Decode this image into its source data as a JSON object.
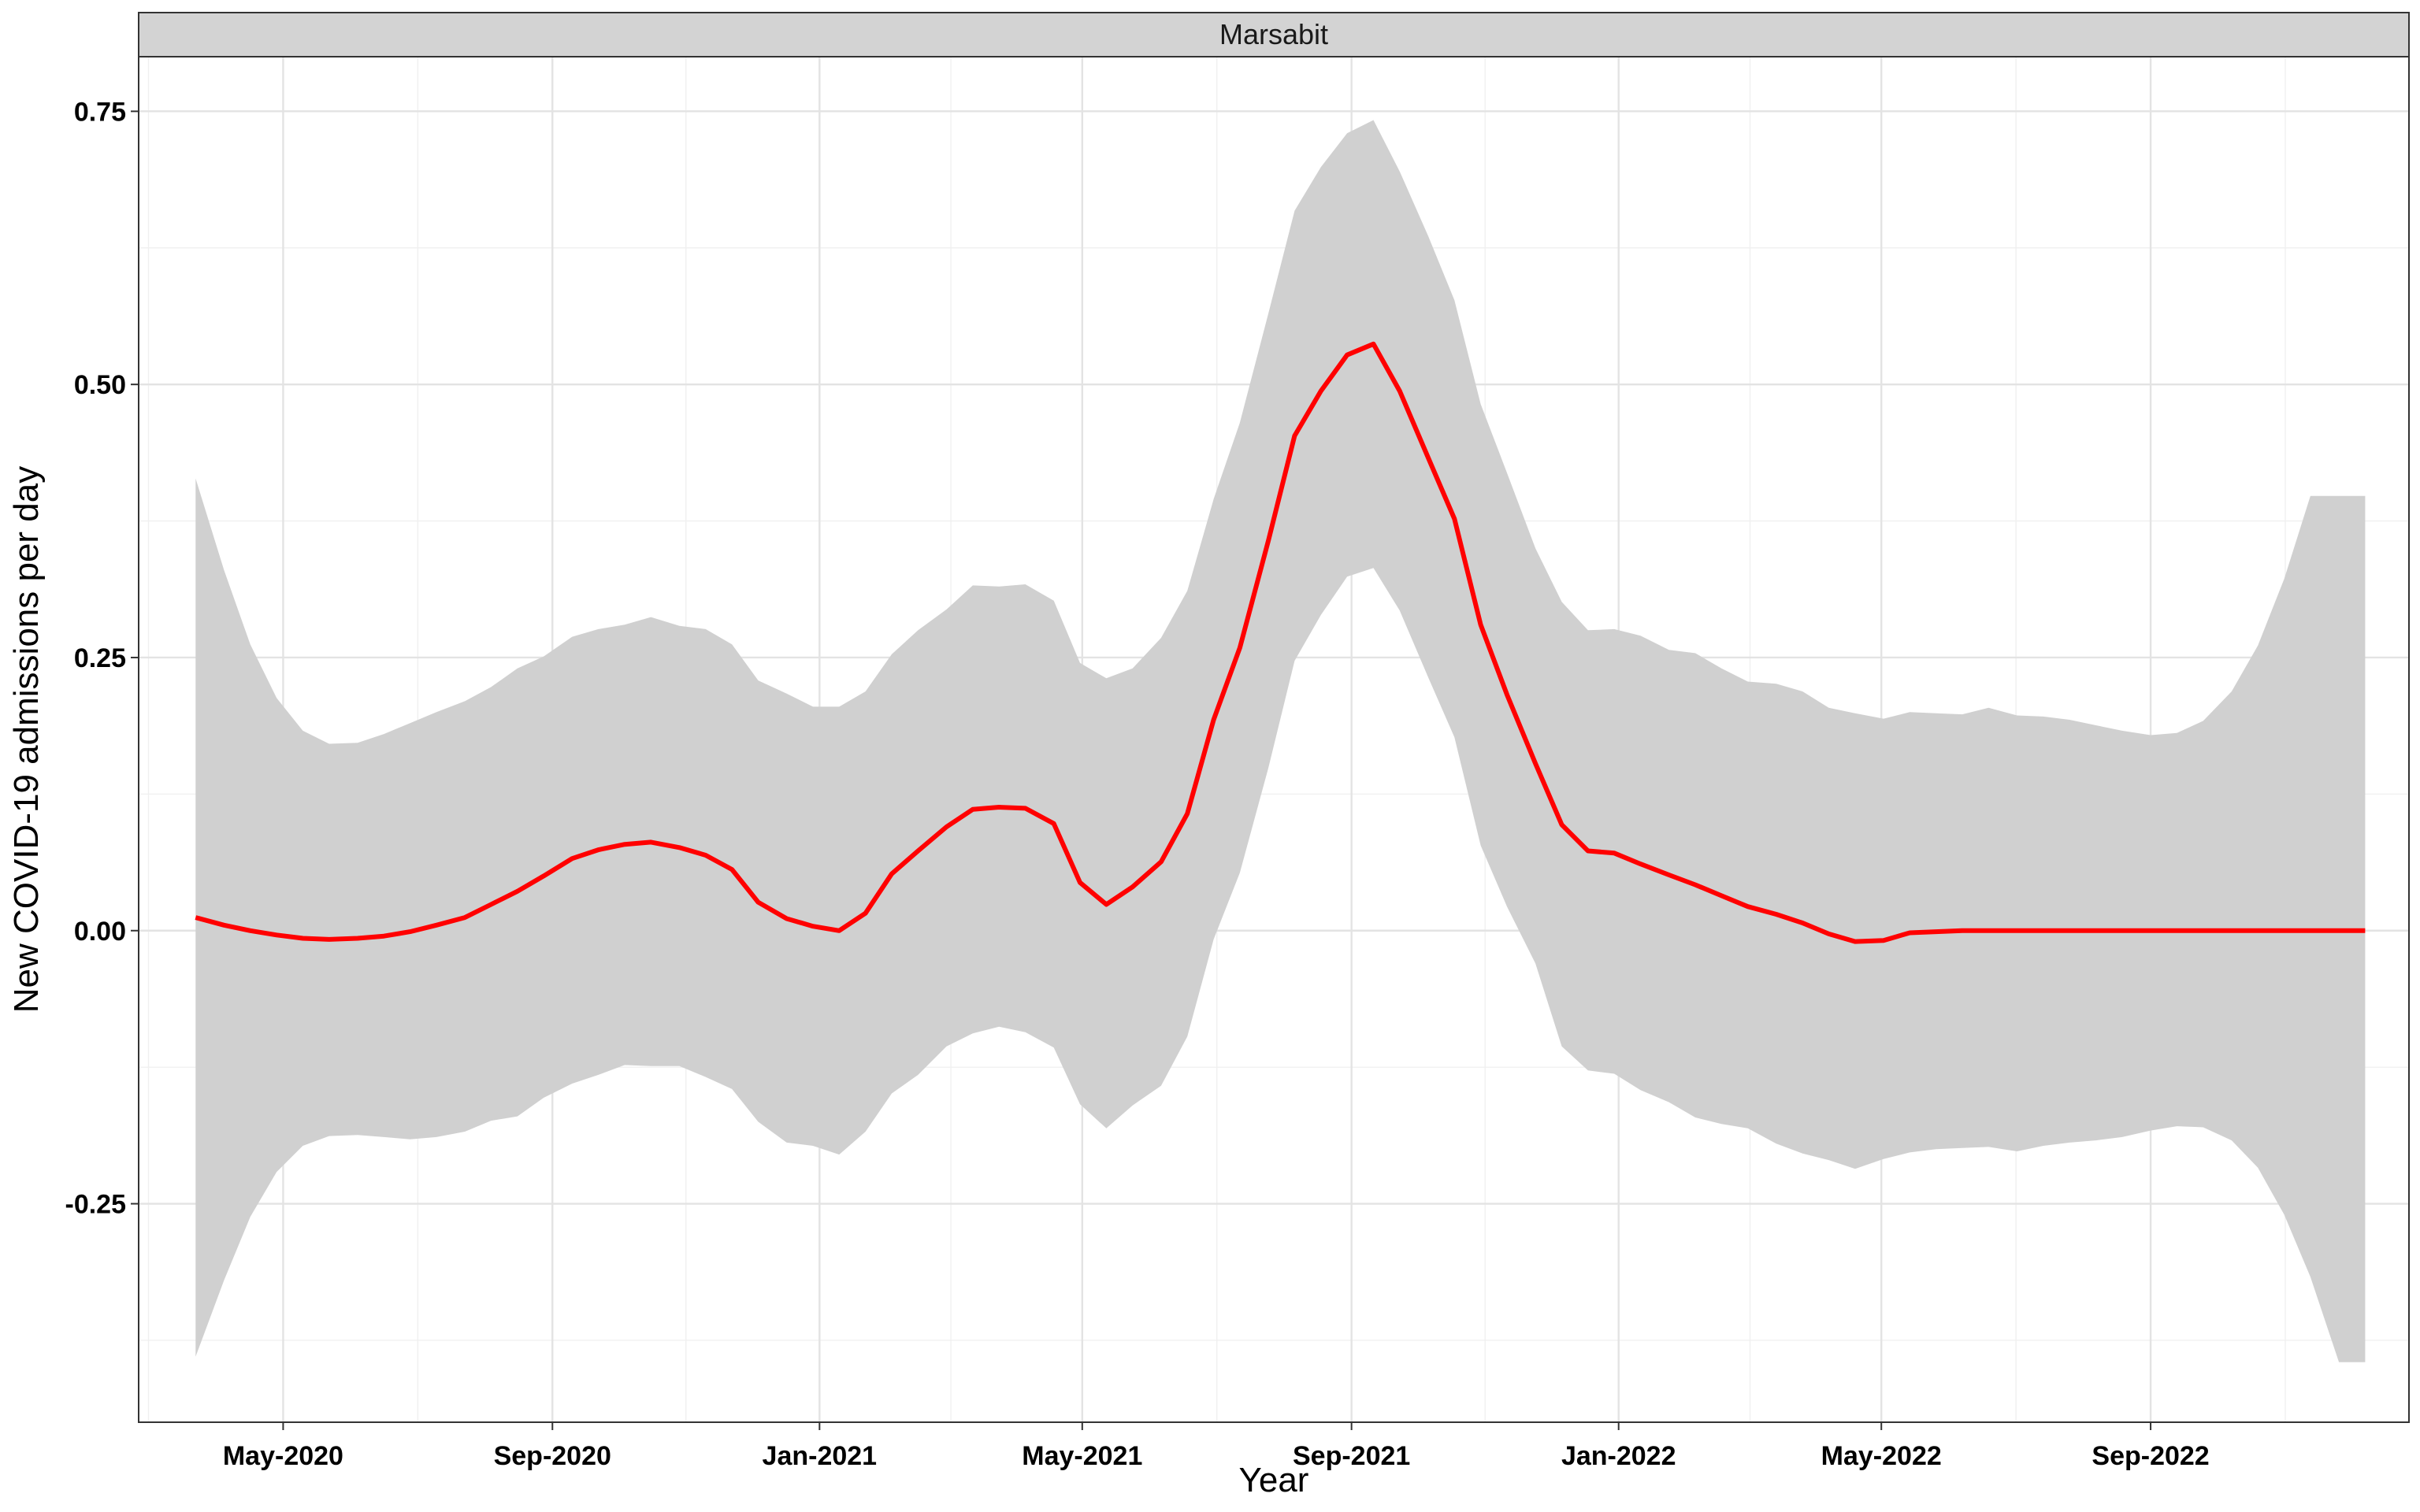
{
  "chart_data": {
    "type": "area",
    "facet_label": "Marsabit",
    "xlabel": "Year",
    "ylabel": "New COVID-19 admissions per day",
    "x_ticks": [
      "2020-05-01",
      "2020-09-01",
      "2021-01-01",
      "2021-05-01",
      "2021-09-01",
      "2022-01-01",
      "2022-05-01",
      "2022-09-01"
    ],
    "x_tick_labels": [
      "May-2020",
      "Sep-2020",
      "Jan-2021",
      "May-2021",
      "Sep-2021",
      "Jan-2022",
      "May-2022",
      "Sep-2022"
    ],
    "y_ticks": [
      -0.25,
      0,
      0.25,
      0.5,
      0.75
    ],
    "y_tick_labels": [
      "-0.25",
      "0.00",
      "0.25",
      "0.50",
      "0.75"
    ],
    "xlim": [
      "2020-02-25",
      "2022-12-28"
    ],
    "ylim": [
      -0.45,
      0.8
    ],
    "grid": true,
    "colors": {
      "line": "#ff0000",
      "ribbon": "#d0d0d0",
      "strip": "#d3d3d3"
    },
    "x": [
      "2020-03-22",
      "2020-04-04",
      "2020-04-16",
      "2020-04-28",
      "2020-05-10",
      "2020-05-22",
      "2020-06-04",
      "2020-06-16",
      "2020-06-28",
      "2020-07-10",
      "2020-07-23",
      "2020-08-04",
      "2020-08-16",
      "2020-08-28",
      "2020-09-10",
      "2020-09-22",
      "2020-10-04",
      "2020-10-16",
      "2020-10-29",
      "2020-11-10",
      "2020-11-22",
      "2020-12-04",
      "2020-12-17",
      "2020-12-29",
      "2021-01-10",
      "2021-01-22",
      "2021-02-03",
      "2021-02-15",
      "2021-02-28",
      "2021-03-12",
      "2021-03-24",
      "2021-04-05",
      "2021-04-18",
      "2021-04-30",
      "2021-05-12",
      "2021-05-24",
      "2021-06-06",
      "2021-06-18",
      "2021-06-30",
      "2021-07-12",
      "2021-07-25",
      "2021-08-06",
      "2021-08-18",
      "2021-08-30",
      "2021-09-11",
      "2021-09-23",
      "2021-10-06",
      "2021-10-18",
      "2021-10-30",
      "2021-11-11",
      "2021-11-24",
      "2021-12-06",
      "2021-12-18",
      "2021-12-30",
      "2022-01-11",
      "2022-01-24",
      "2022-02-05",
      "2022-02-17",
      "2022-03-01",
      "2022-03-14",
      "2022-03-26",
      "2022-04-07",
      "2022-04-19",
      "2022-05-02",
      "2022-05-14",
      "2022-05-26",
      "2022-06-07",
      "2022-06-19",
      "2022-07-02",
      "2022-07-14",
      "2022-07-26",
      "2022-08-07",
      "2022-08-19",
      "2022-09-01",
      "2022-09-13",
      "2022-09-25",
      "2022-10-08",
      "2022-10-20",
      "2022-11-01",
      "2022-11-13",
      "2022-11-26",
      "2022-12-08"
    ],
    "series": [
      {
        "values": [
          0.012,
          0.005,
          0,
          -0.004,
          -0.007,
          -0.008,
          -0.007,
          -0.005,
          -0.001,
          0.005,
          0.012,
          0.024,
          0.036,
          0.05,
          0.066,
          0.074,
          0.079,
          0.081,
          0.076,
          0.069,
          0.056,
          0.026,
          0.011,
          0.004,
          0,
          0.016,
          0.052,
          0.073,
          0.095,
          0.111,
          0.113,
          0.112,
          0.098,
          0.044,
          0.024,
          0.04,
          0.063,
          0.107,
          0.193,
          0.259,
          0.357,
          0.453,
          0.494,
          0.527,
          0.537,
          0.494,
          0.433,
          0.377,
          0.28,
          0.216,
          0.153,
          0.097,
          0.073,
          0.071,
          0.061,
          0.051,
          0.042,
          0.032,
          0.022,
          0.015,
          0.007,
          -0.003,
          -0.01,
          -0.009,
          -0.002,
          -0.001,
          0,
          0,
          0,
          0,
          0,
          0,
          0,
          0,
          0,
          0,
          0,
          0,
          0,
          0,
          0,
          0
        ],
        "lower": [
          -0.39,
          -0.32,
          -0.262,
          -0.221,
          -0.197,
          -0.188,
          -0.187,
          -0.189,
          -0.191,
          -0.189,
          -0.184,
          -0.174,
          -0.17,
          -0.153,
          -0.14,
          -0.132,
          -0.123,
          -0.124,
          -0.124,
          -0.134,
          -0.145,
          -0.175,
          -0.194,
          -0.197,
          -0.205,
          -0.184,
          -0.149,
          -0.132,
          -0.106,
          -0.094,
          -0.088,
          -0.093,
          -0.107,
          -0.159,
          -0.181,
          -0.16,
          -0.142,
          -0.097,
          -0.008,
          0.053,
          0.149,
          0.247,
          0.289,
          0.324,
          0.332,
          0.293,
          0.232,
          0.177,
          0.078,
          0.022,
          -0.03,
          -0.106,
          -0.128,
          -0.131,
          -0.146,
          -0.157,
          -0.171,
          -0.177,
          -0.181,
          -0.195,
          -0.204,
          -0.21,
          -0.218,
          -0.209,
          -0.203,
          -0.2,
          -0.199,
          -0.198,
          -0.202,
          -0.197,
          -0.194,
          -0.192,
          -0.189,
          -0.183,
          -0.179,
          -0.18,
          -0.192,
          -0.217,
          -0.26,
          -0.317,
          -0.395,
          -0.395
        ],
        "upper": [
          0.414,
          0.33,
          0.262,
          0.213,
          0.183,
          0.171,
          0.172,
          0.18,
          0.19,
          0.2,
          0.21,
          0.223,
          0.24,
          0.251,
          0.269,
          0.276,
          0.28,
          0.287,
          0.279,
          0.276,
          0.262,
          0.229,
          0.217,
          0.205,
          0.205,
          0.219,
          0.253,
          0.275,
          0.294,
          0.316,
          0.315,
          0.317,
          0.302,
          0.245,
          0.231,
          0.24,
          0.268,
          0.311,
          0.395,
          0.465,
          0.565,
          0.659,
          0.699,
          0.73,
          0.742,
          0.695,
          0.636,
          0.577,
          0.482,
          0.419,
          0.35,
          0.301,
          0.275,
          0.276,
          0.27,
          0.257,
          0.254,
          0.24,
          0.228,
          0.226,
          0.219,
          0.204,
          0.199,
          0.194,
          0.2,
          0.199,
          0.198,
          0.204,
          0.197,
          0.196,
          0.193,
          0.188,
          0.183,
          0.179,
          0.181,
          0.192,
          0.219,
          0.261,
          0.322,
          0.398,
          0.398,
          0.398
        ]
      }
    ]
  }
}
